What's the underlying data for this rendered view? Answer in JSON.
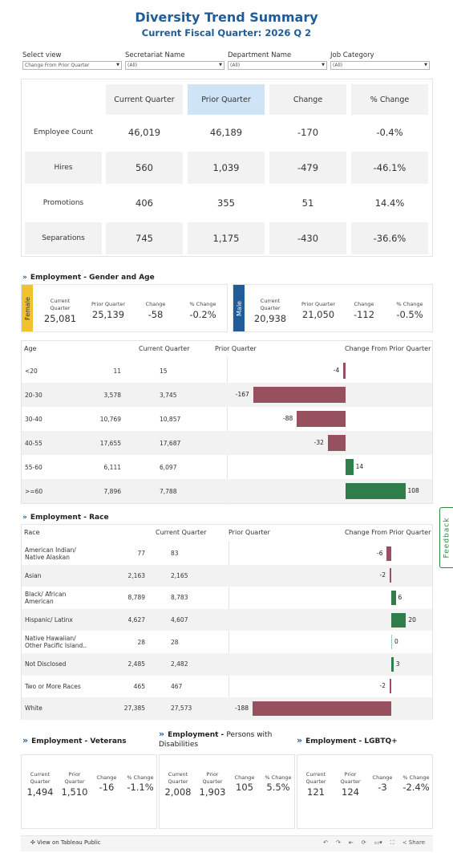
{
  "header": {
    "title": "Diversity Trend Summary",
    "subtitle": "Current Fiscal Quarter: 2026 Q 2"
  },
  "filters": [
    {
      "label": "Select view",
      "value": "Change From Prior Quarter"
    },
    {
      "label": "Secretariat Name",
      "value": "(All)"
    },
    {
      "label": "Department Name",
      "value": "(All)"
    },
    {
      "label": "Job Category",
      "value": "(All)"
    }
  ],
  "summary": {
    "columns": [
      "Current Quarter",
      "Prior Quarter",
      "Change",
      "% Change"
    ],
    "rows": [
      {
        "label": "Employee Count",
        "values": [
          "46,019",
          "46,189",
          "-170",
          "-0.4%"
        ]
      },
      {
        "label": "Hires",
        "values": [
          "560",
          "1,039",
          "-479",
          "-46.1%"
        ]
      },
      {
        "label": "Promotions",
        "values": [
          "406",
          "355",
          "51",
          "14.4%"
        ]
      },
      {
        "label": "Separations",
        "values": [
          "745",
          "1,175",
          "-430",
          "-36.6%"
        ]
      }
    ]
  },
  "gender_age": {
    "section_title": "Employment - Gender and Age",
    "female": {
      "tab": "Female",
      "labels": [
        "Current\nQuarter",
        "Prior Quarter",
        "Change",
        "% Change"
      ],
      "values": [
        "25,081",
        "25,139",
        "-58",
        "-0.2%"
      ]
    },
    "male": {
      "tab": "Male",
      "labels": [
        "Current\nQuarter",
        "Prior Quarter",
        "Change",
        "% Change"
      ],
      "values": [
        "20,938",
        "21,050",
        "-112",
        "-0.5%"
      ]
    },
    "table_headers": [
      "Age",
      "Current Quarter",
      "Prior Quarter",
      "Change From Prior Quarter"
    ],
    "rows": [
      {
        "label": "<20",
        "current": "11",
        "prior": "15",
        "change": -4
      },
      {
        "label": "20-30",
        "current": "3,578",
        "prior": "3,745",
        "change": -167
      },
      {
        "label": "30-40",
        "current": "10,769",
        "prior": "10,857",
        "change": -88
      },
      {
        "label": "40-55",
        "current": "17,655",
        "prior": "17,687",
        "change": -32
      },
      {
        "label": "55-60",
        "current": "6,111",
        "prior": "6,097",
        "change": 14
      },
      {
        "label": ">=60",
        "current": "7,896",
        "prior": "7,788",
        "change": 108
      }
    ]
  },
  "race": {
    "section_title": "Employment - Race",
    "table_headers": [
      "Race",
      "Current Quarter",
      "Prior Quarter",
      "Change From Prior Quarter"
    ],
    "rows": [
      {
        "label": "American Indian/\nNative Alaskan",
        "current": "77",
        "prior": "83",
        "change": -6
      },
      {
        "label": "Asian",
        "current": "2,163",
        "prior": "2,165",
        "change": -2
      },
      {
        "label": "Black/ African\nAmerican",
        "current": "8,789",
        "prior": "8,783",
        "change": 6
      },
      {
        "label": "Hispanic/ Latinx",
        "current": "4,627",
        "prior": "4,607",
        "change": 20
      },
      {
        "label": "Native Hawaiian/\nOther Pacific Island..",
        "current": "28",
        "prior": "28",
        "change": 0
      },
      {
        "label": "Not Disclosed",
        "current": "2,485",
        "prior": "2,482",
        "change": 3
      },
      {
        "label": "Two or More Races",
        "current": "465",
        "prior": "467",
        "change": -2
      },
      {
        "label": "White",
        "current": "27,385",
        "prior": "27,573",
        "change": -188
      }
    ]
  },
  "bottom": [
    {
      "title_bold": "Employment - Veterans",
      "title_rest": "",
      "labels": [
        "Current\nQuarter",
        "Prior\nQuarter",
        "Change",
        "% Change"
      ],
      "values": [
        "1,494",
        "1,510",
        "-16",
        "-1.1%"
      ]
    },
    {
      "title_bold": "Employment - ",
      "title_rest": "Persons with Disabilities",
      "labels": [
        "Current\nQuarter",
        "Prior\nQuarter",
        "Change",
        "% Change"
      ],
      "values": [
        "2,008",
        "1,903",
        "105",
        "5.5%"
      ]
    },
    {
      "title_bold": "Employment - LGBTQ+",
      "title_rest": "",
      "labels": [
        "Current\nQuarter",
        "Prior\nQuarter",
        "Change",
        "% Change"
      ],
      "values": [
        "121",
        "124",
        "-3",
        "-2.4%"
      ]
    }
  ],
  "feedback": "Feedback",
  "footer": {
    "view_label": "View on Tableau Public",
    "share_label": "Share",
    "icons": [
      "tableau-logo-icon",
      "undo-icon",
      "redo-icon",
      "revert-icon",
      "refresh-icon",
      "device-preview-icon",
      "fullscreen-icon",
      "share-icon"
    ]
  },
  "colors": {
    "title": "#1f5c99",
    "female_tab": "#f2c12e",
    "male_tab": "#1f5c99",
    "negative": "#96505e",
    "positive": "#2f7d4a",
    "prior_highlight": "#cfe5f7",
    "shade": "#f2f2f2"
  }
}
